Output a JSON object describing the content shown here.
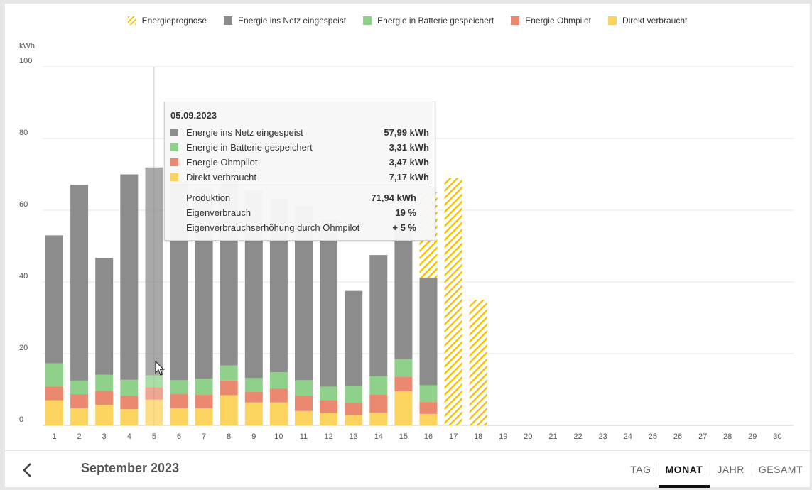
{
  "legend": [
    {
      "label": "Energieprognose",
      "color": "#f2c200",
      "pattern": "hatch"
    },
    {
      "label": "Energie ins Netz eingespeist",
      "color": "#8c8c8c"
    },
    {
      "label": "Energie in Batterie gespeichert",
      "color": "#8fd18a"
    },
    {
      "label": "Energie Ohmpilot",
      "color": "#ea8870"
    },
    {
      "label": "Direkt verbraucht",
      "color": "#fbd35f"
    }
  ],
  "chart_data": {
    "type": "bar",
    "stacked": true,
    "ylabel": "kWh",
    "ylim": [
      0,
      100
    ],
    "yticks": [
      0,
      20,
      40,
      60,
      80,
      100
    ],
    "categories": [
      "1",
      "2",
      "3",
      "4",
      "5",
      "6",
      "7",
      "8",
      "9",
      "10",
      "11",
      "12",
      "13",
      "14",
      "15",
      "16",
      "17",
      "18",
      "19",
      "20",
      "21",
      "22",
      "23",
      "24",
      "25",
      "26",
      "27",
      "28",
      "29",
      "30"
    ],
    "series": [
      {
        "name": "Direkt verbraucht",
        "color": "#fbd35f",
        "values": [
          7.0,
          4.8,
          5.7,
          4.5,
          7.17,
          4.8,
          4.8,
          8.4,
          6.4,
          6.4,
          4.0,
          3.4,
          2.9,
          3.5,
          9.5,
          3.2,
          0,
          0,
          0,
          0,
          0,
          0,
          0,
          0,
          0,
          0,
          0,
          0,
          0,
          0
        ]
      },
      {
        "name": "Energie Ohmpilot",
        "color": "#ea8870",
        "values": [
          3.8,
          3.9,
          3.9,
          3.8,
          3.47,
          4.0,
          3.7,
          4.1,
          2.9,
          3.8,
          4.3,
          3.7,
          3.4,
          5.1,
          4.1,
          3.3,
          0,
          0,
          0,
          0,
          0,
          0,
          0,
          0,
          0,
          0,
          0,
          0,
          0,
          0
        ]
      },
      {
        "name": "Energie in Batterie gespeichert",
        "color": "#8fd18a",
        "values": [
          6.5,
          3.8,
          4.5,
          4.4,
          3.31,
          3.8,
          4.5,
          4.2,
          3.9,
          4.6,
          4.3,
          3.7,
          4.6,
          5.1,
          4.9,
          4.7,
          0,
          0,
          0,
          0,
          0,
          0,
          0,
          0,
          0,
          0,
          0,
          0,
          0,
          0
        ]
      },
      {
        "name": "Energie ins Netz eingespeist",
        "color": "#8c8c8c",
        "values": [
          35.7,
          54.6,
          32.6,
          57.3,
          57.99,
          55.4,
          53.0,
          51.5,
          52.3,
          48.3,
          48.5,
          46.6,
          26.6,
          33.8,
          41.0,
          29.9,
          0,
          0,
          0,
          0,
          0,
          0,
          0,
          0,
          0,
          0,
          0,
          0,
          0,
          0
        ]
      }
    ],
    "forecast": {
      "name": "Energieprognose",
      "color": "#f2c200",
      "values": [
        null,
        null,
        null,
        null,
        null,
        null,
        null,
        null,
        null,
        null,
        null,
        null,
        null,
        null,
        null,
        65.0,
        69.0,
        35.0,
        null,
        null,
        null,
        null,
        null,
        null,
        null,
        null,
        null,
        null,
        null,
        null
      ]
    },
    "highlight_index": 4
  },
  "tooltip": {
    "date": "05.09.2023",
    "rows": [
      {
        "label": "Energie ins Netz eingespeist",
        "value": "57,99 kWh",
        "color": "#8c8c8c"
      },
      {
        "label": "Energie in Batterie gespeichert",
        "value": "3,31 kWh",
        "color": "#8fd18a"
      },
      {
        "label": "Energie Ohmpilot",
        "value": "3,47 kWh",
        "color": "#ea8870"
      },
      {
        "label": "Direkt verbraucht",
        "value": "7,17 kWh",
        "color": "#fbd35f"
      }
    ],
    "summary": [
      {
        "label": "Produktion",
        "value": "71,94 kWh"
      },
      {
        "label": "Eigenverbrauch",
        "value": "19 %"
      },
      {
        "label": "Eigenverbrauchserhöhung durch Ohmpilot",
        "value": "+ 5 %"
      }
    ]
  },
  "footer": {
    "period_label": "September 2023",
    "tabs": [
      {
        "label": "TAG",
        "active": false
      },
      {
        "label": "MONAT",
        "active": true
      },
      {
        "label": "JAHR",
        "active": false
      },
      {
        "label": "GESAMT",
        "active": false
      }
    ]
  }
}
